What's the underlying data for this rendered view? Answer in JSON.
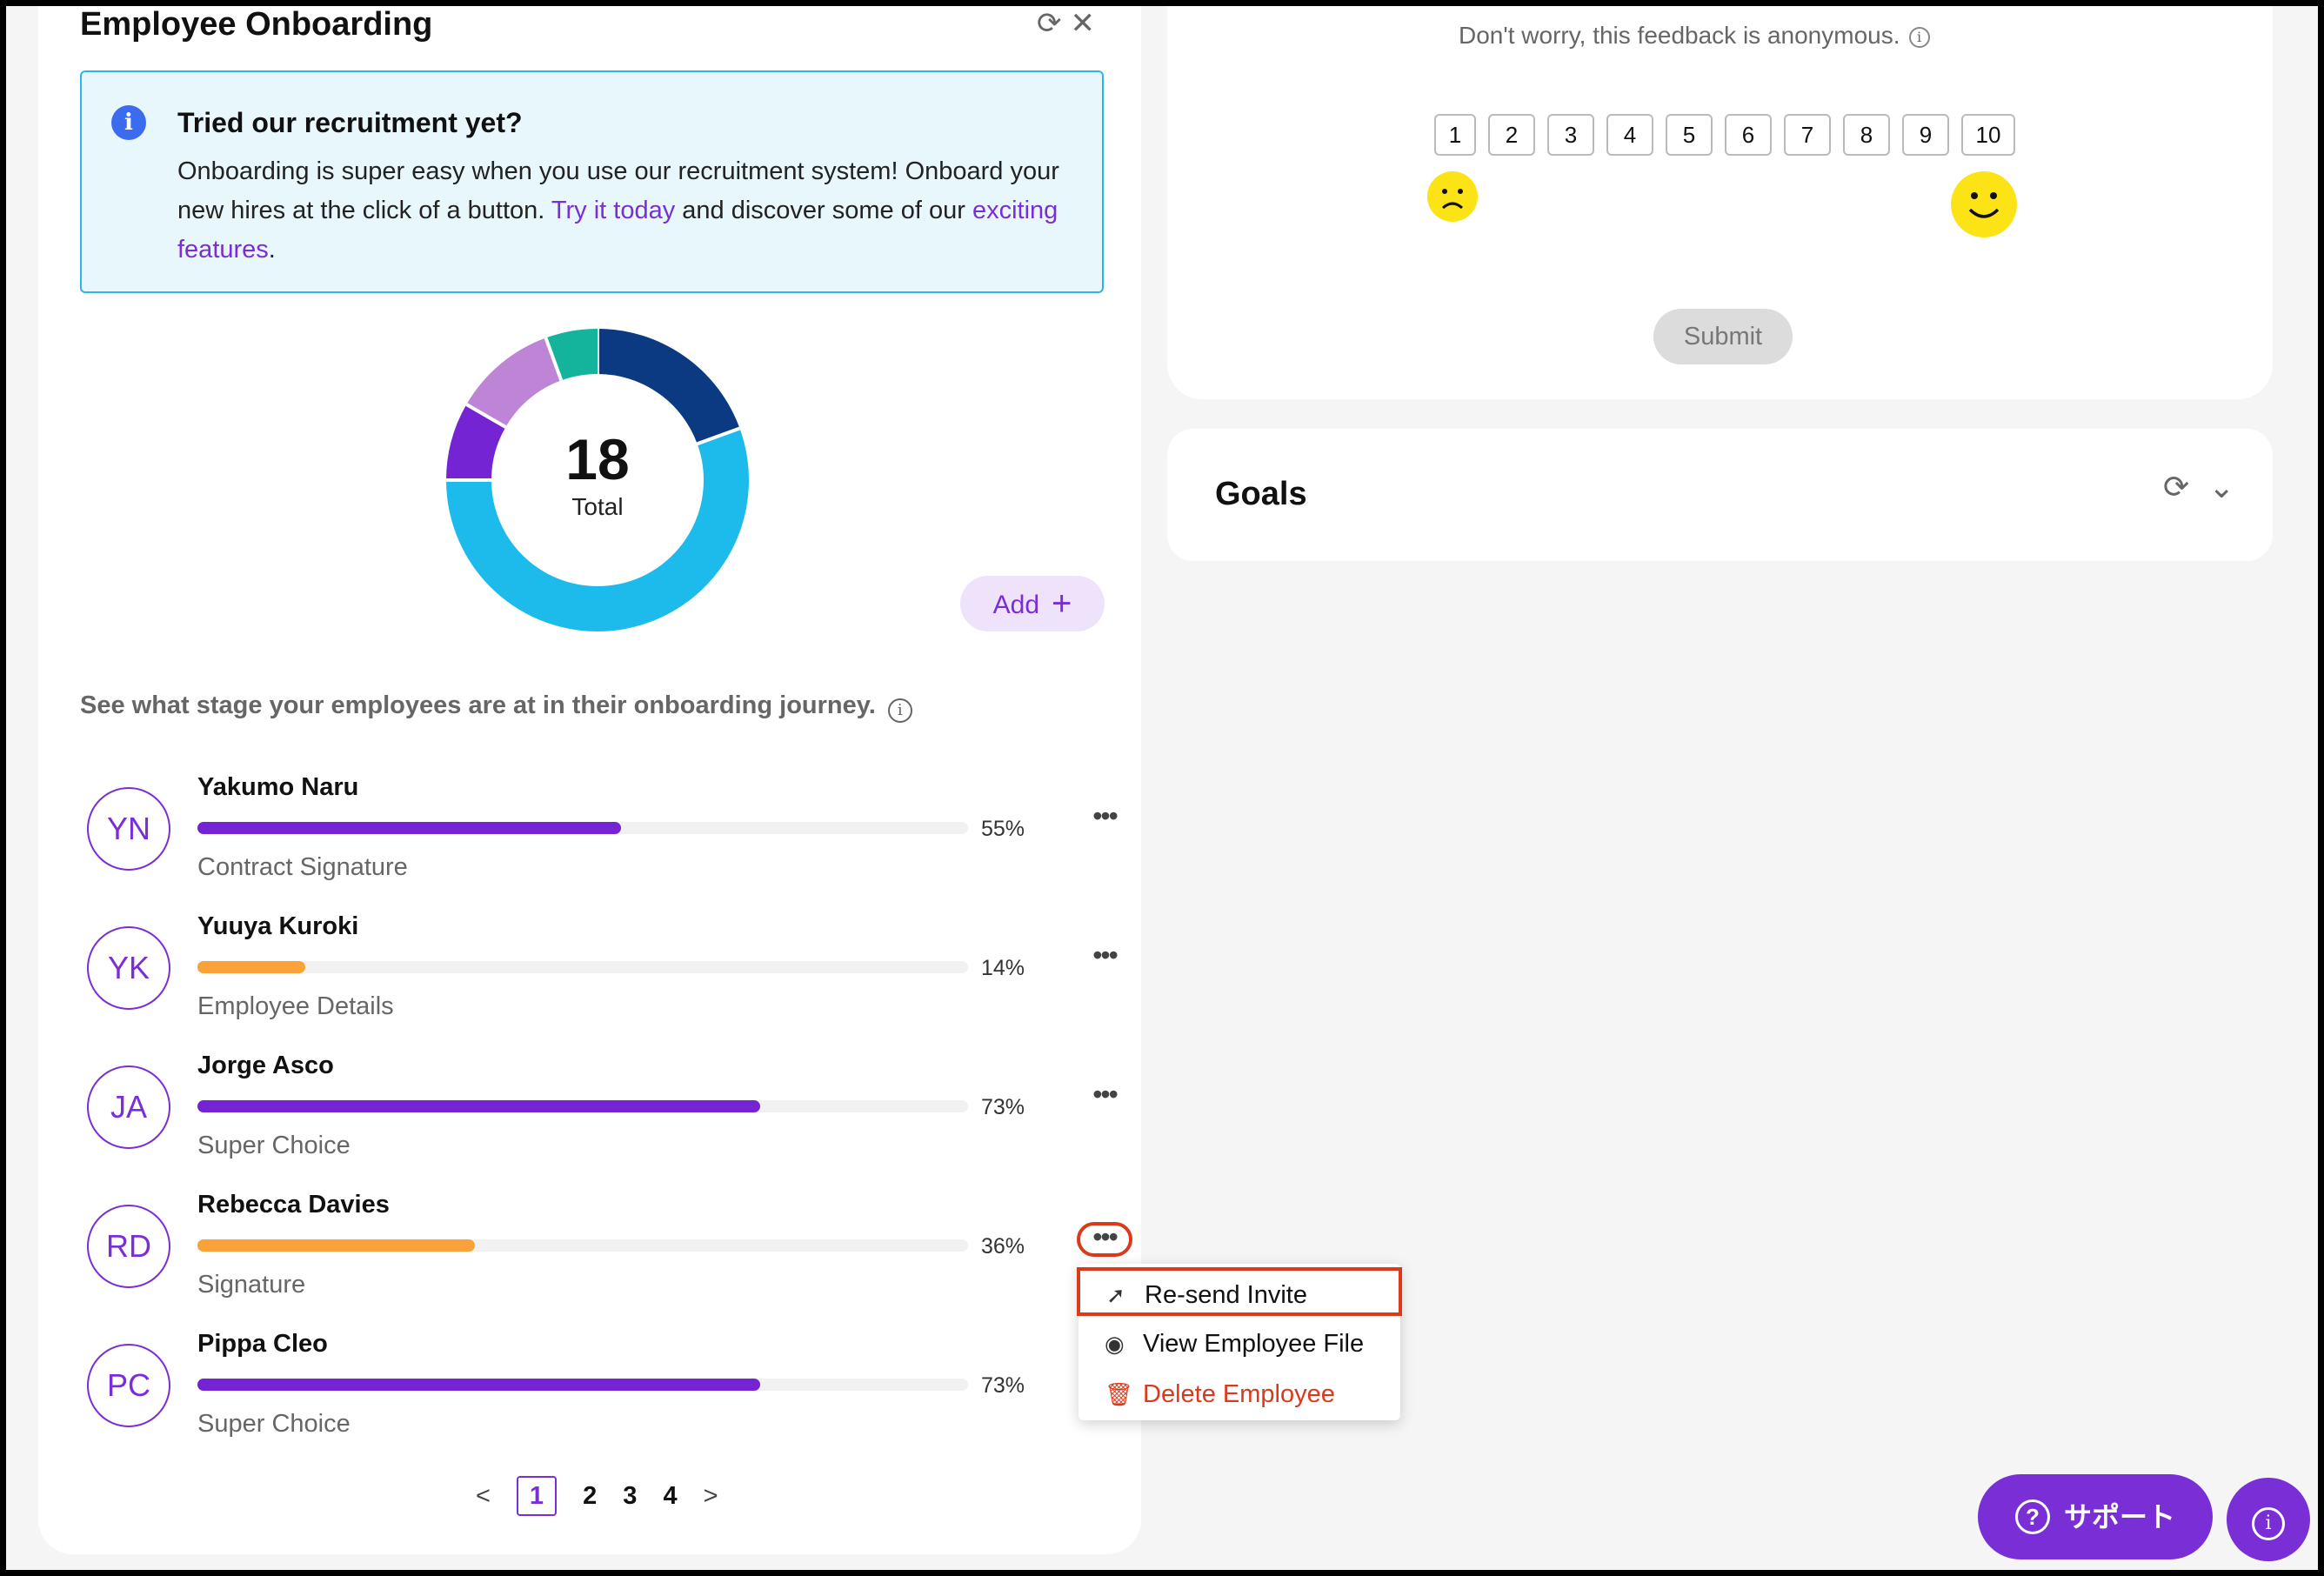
{
  "onboarding": {
    "title": "Employee Onboarding",
    "info": {
      "title": "Tried our recruitment yet?",
      "body_part1": "Onboarding is super easy when you use our recruitment system! Onboard your new hires at the click of a button. ",
      "link1": "Try it today",
      "body_part2": " and discover some of our ",
      "link2": "exciting features",
      "body_part3": "."
    },
    "donut": {
      "total": "18",
      "total_label": "Total",
      "segments": [
        {
          "value": 3.5,
          "color": "#0b3a82"
        },
        {
          "value": 10,
          "color": "#1dbbec"
        },
        {
          "value": 1.5,
          "color": "#7524d4"
        },
        {
          "value": 2,
          "color": "#be85d7"
        },
        {
          "value": 1,
          "color": "#13b39c"
        }
      ]
    },
    "add_label": "Add",
    "stage_description": "See what stage your employees are at in their onboarding journey.",
    "employees": [
      {
        "initials": "YN",
        "name": "Yakumo Naru",
        "progress": 55,
        "pct_label": "55%",
        "stage": "Contract Signature",
        "color": "#7524d4"
      },
      {
        "initials": "YK",
        "name": "Yuuya Kuroki",
        "progress": 14,
        "pct_label": "14%",
        "stage": "Employee Details",
        "color": "#f9a23a"
      },
      {
        "initials": "JA",
        "name": "Jorge Asco",
        "progress": 73,
        "pct_label": "73%",
        "stage": "Super Choice",
        "color": "#7524d4"
      },
      {
        "initials": "RD",
        "name": "Rebecca Davies",
        "progress": 36,
        "pct_label": "36%",
        "stage": "Signature",
        "color": "#f9a23a"
      },
      {
        "initials": "PC",
        "name": "Pippa Cleo",
        "progress": 73,
        "pct_label": "73%",
        "stage": "Super Choice",
        "color": "#7524d4"
      }
    ],
    "pagination": {
      "prev": "<",
      "pages": [
        "1",
        "2",
        "3",
        "4"
      ],
      "next": ">"
    },
    "menu": {
      "resend": "Re-send Invite",
      "view": "View Employee File",
      "delete": "Delete Employee"
    }
  },
  "feedback": {
    "anonymous_note": "Don't worry, this feedback is anonymous.",
    "scale": [
      "1",
      "2",
      "3",
      "4",
      "5",
      "6",
      "7",
      "8",
      "9",
      "10"
    ],
    "submit_label": "Submit"
  },
  "goals": {
    "title": "Goals"
  },
  "support": {
    "label": "サポート"
  },
  "colors": {
    "accent": "#7a2fd6",
    "highlight": "#d93a1c"
  }
}
